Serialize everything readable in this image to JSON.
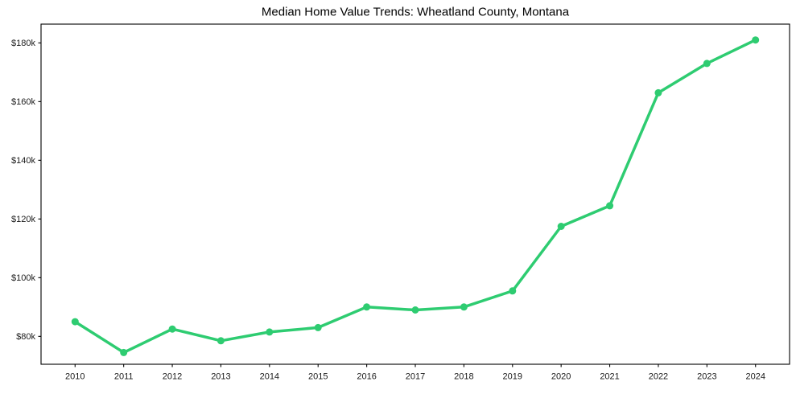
{
  "page": {
    "background_color": "#ffffff"
  },
  "chart_data": {
    "type": "line",
    "title": "Median Home Value Trends: Wheatland County, Montana",
    "series_name": "Median Home Value",
    "x": [
      2010,
      2011,
      2012,
      2013,
      2014,
      2015,
      2016,
      2017,
      2018,
      2019,
      2020,
      2021,
      2022,
      2023,
      2024
    ],
    "values": [
      85000,
      74500,
      82500,
      78500,
      81500,
      83000,
      90000,
      89000,
      90000,
      95500,
      117500,
      124500,
      163000,
      173000,
      181000
    ],
    "x_tick_labels": [
      "2010",
      "2011",
      "2012",
      "2013",
      "2014",
      "2015",
      "2016",
      "2017",
      "2018",
      "2019",
      "2020",
      "2021",
      "2022",
      "2023",
      "2024"
    ],
    "y_tick_values": [
      80000,
      100000,
      120000,
      140000,
      160000,
      180000
    ],
    "y_tick_labels": [
      "$80k",
      "$100k",
      "$120k",
      "$140k",
      "$160k",
      "$180k"
    ],
    "xlabel": "",
    "ylabel": "",
    "xlim": [
      2009.3,
      2024.7
    ],
    "ylim": [
      70500,
      186400
    ],
    "grid": false,
    "legend": "none",
    "marker": "circle",
    "line_color": "#2ecc71",
    "marker_color": "#2ecc71",
    "spine_color": "#000000",
    "tick_color": "#000000",
    "title_color": "#000000",
    "plot_background": "#ffffff"
  }
}
